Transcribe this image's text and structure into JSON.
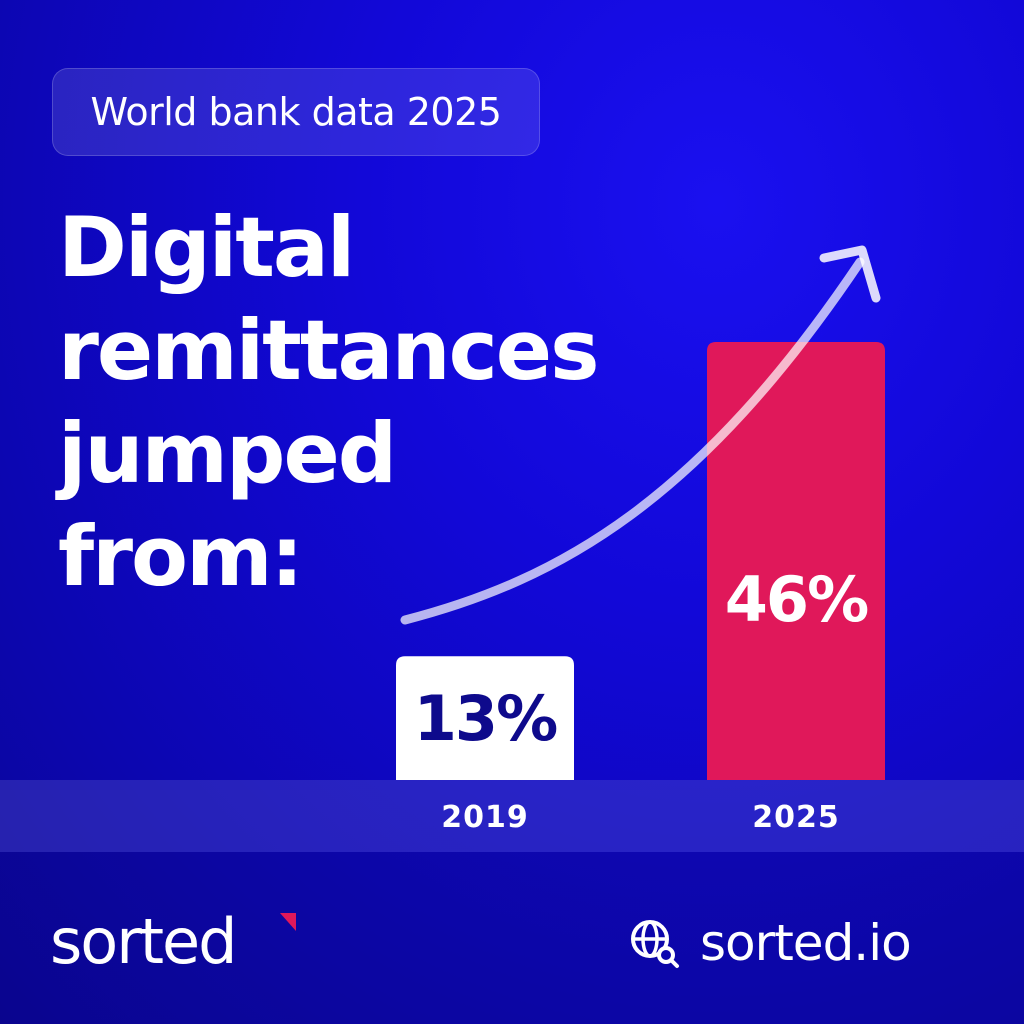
{
  "badge": "World bank data 2025",
  "headline": [
    "Digital",
    "remittances",
    "jumped",
    "from:"
  ],
  "chart_data": {
    "type": "bar",
    "categories": [
      "2019",
      "2025"
    ],
    "values": [
      13,
      46
    ],
    "value_labels": [
      "13%",
      "46%"
    ],
    "ylim": [
      0,
      46
    ],
    "colors": [
      "#ffffff",
      "#e0185a"
    ],
    "value_label_colors": [
      "#0e0a8c",
      "#ffffff"
    ],
    "trend_arrow": true
  },
  "footer": {
    "brand": "sorted",
    "brand_accent_color": "#e0185a",
    "website": "sorted.io",
    "website_icon": "globe-search-icon"
  }
}
